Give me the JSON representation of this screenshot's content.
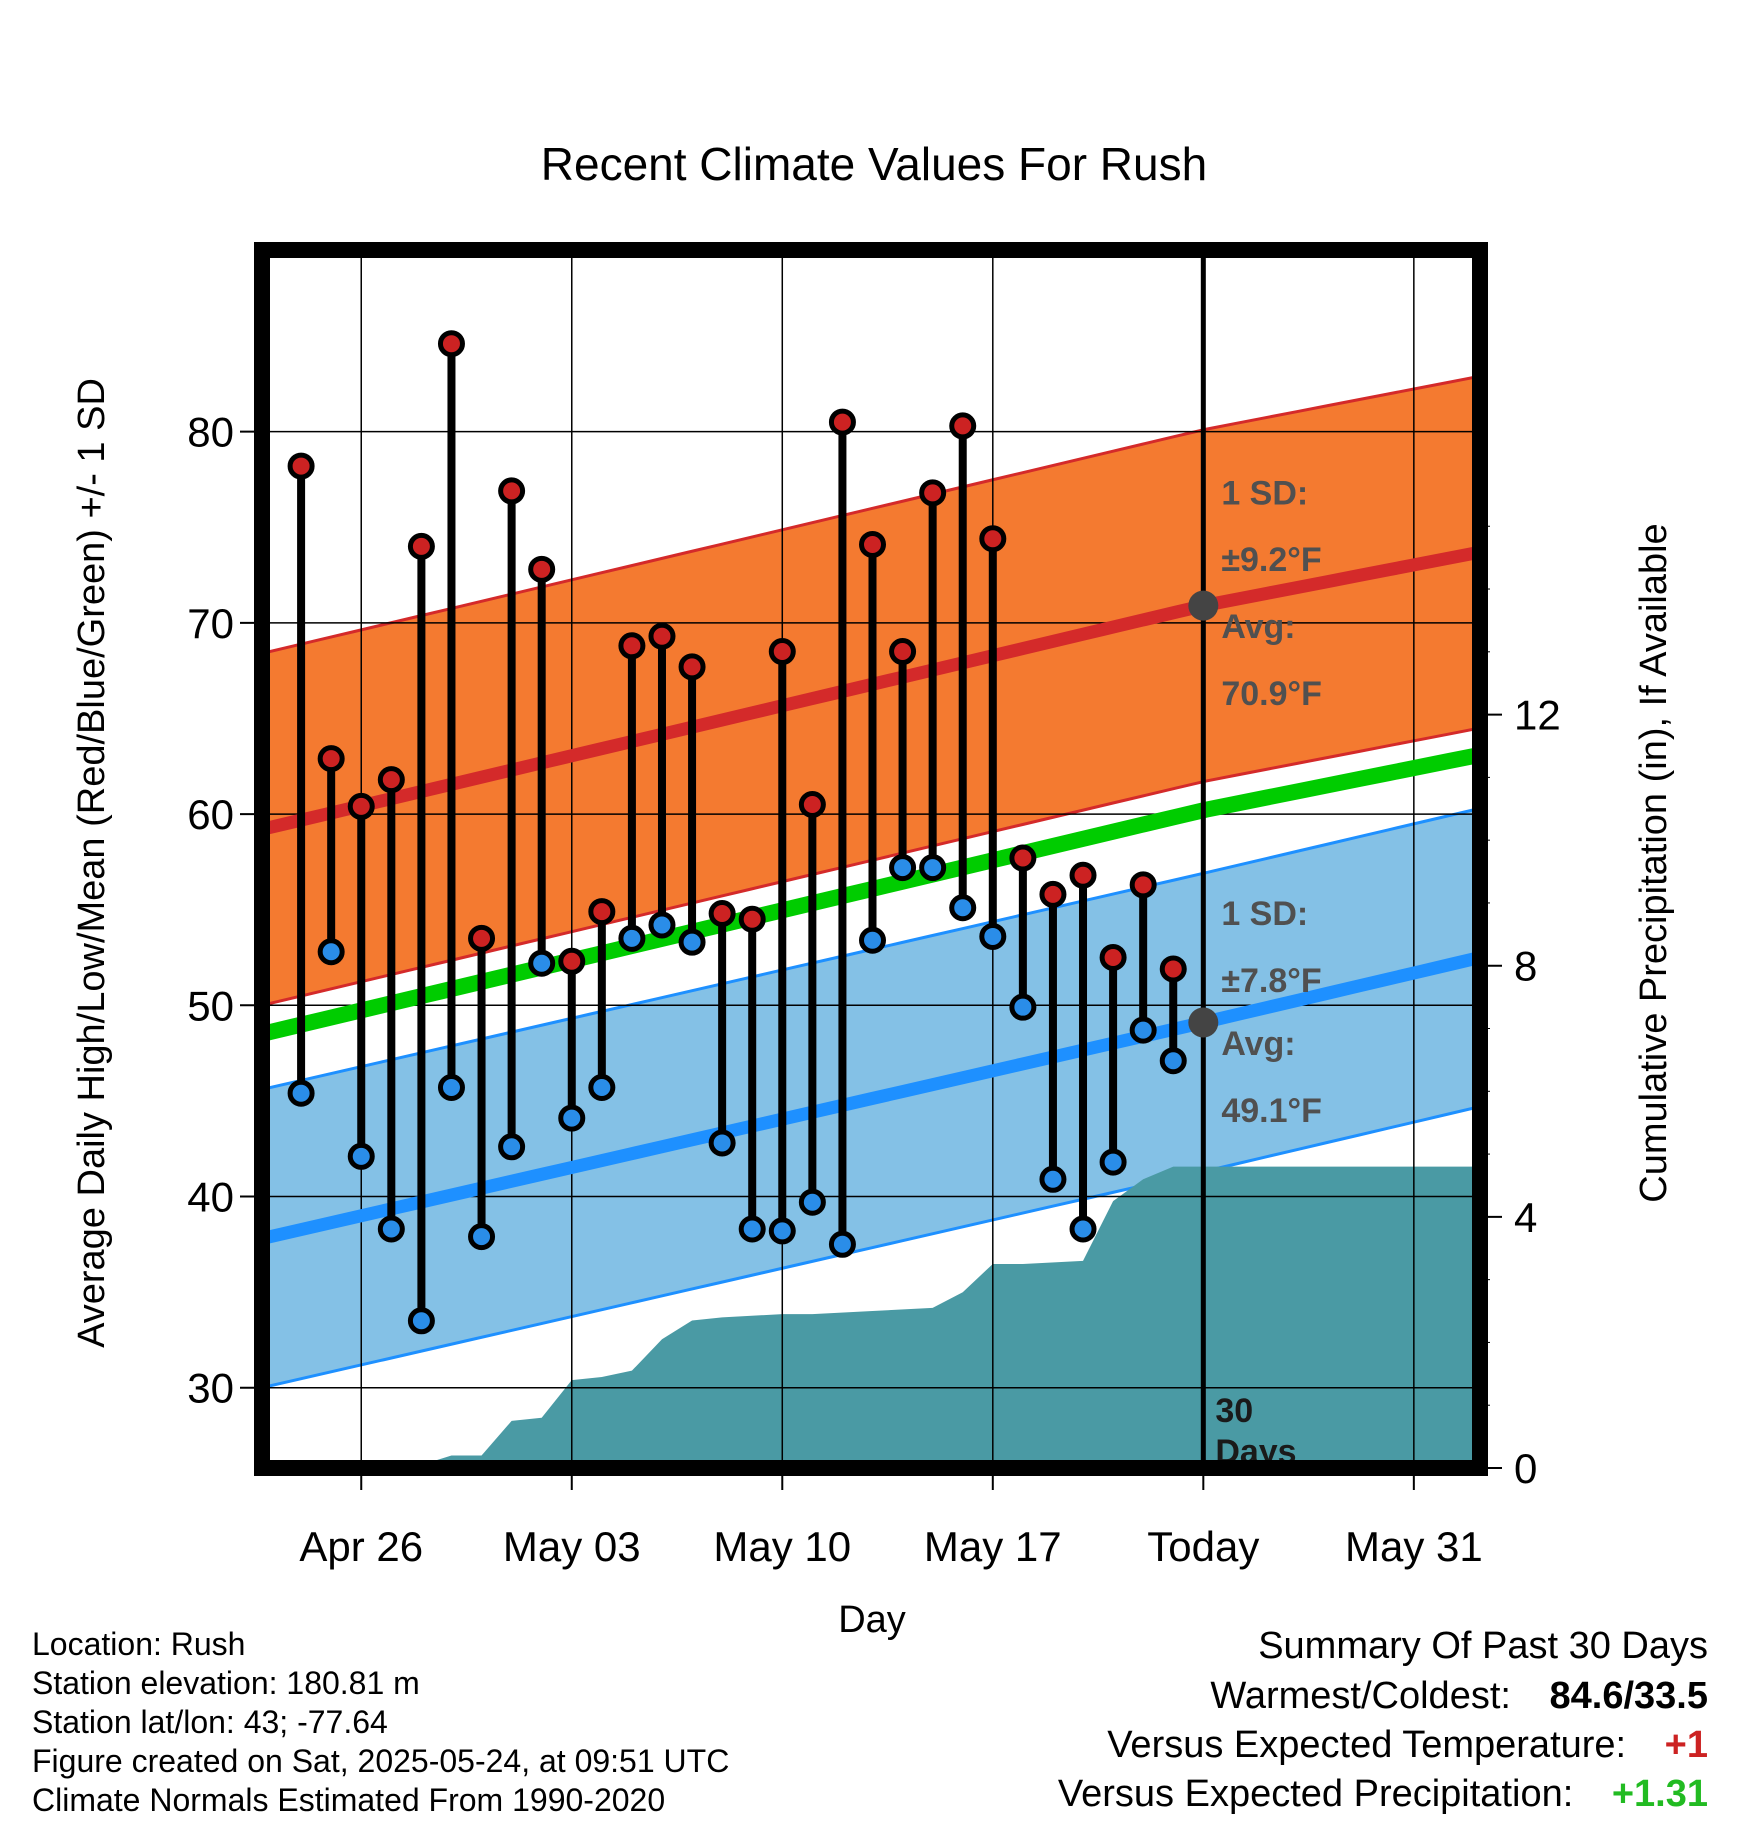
{
  "title": "Recent Climate Values For Rush",
  "y_left_label": "Average Daily High/Low/Mean (Red/Blue/Green) +/- 1 SD",
  "y_right_label": "Cumulative Precipitation (in), If Available",
  "x_label": "Day",
  "annotations": {
    "high_sd_line1": "1 SD:",
    "high_sd_line2": "±9.2°F",
    "high_avg_line1": "Avg:",
    "high_avg_line2": "70.9°F",
    "low_sd_line1": "1 SD:",
    "low_sd_line2": "±7.8°F",
    "low_avg_line1": "Avg:",
    "low_avg_line2": "49.1°F",
    "days_line1": "30",
    "days_line2": "Days"
  },
  "info": {
    "location": "Location: Rush",
    "elevation": "Station elevation: 180.81 m",
    "latlon": "Station lat/lon: 43; -77.64",
    "created": "Figure created on Sat, 2025-05-24, at 09:51 UTC",
    "normals": "Climate Normals Estimated From 1990-2020"
  },
  "summary": {
    "title": "Summary Of Past 30 Days",
    "warm_cold_label": "Warmest/Coldest:",
    "warm_cold_value": "84.6/33.5",
    "temp_label": "Versus Expected Temperature:",
    "temp_value": "+1",
    "precip_label": "Versus Expected Precipitation:",
    "precip_value": "+1.31"
  },
  "colors": {
    "high_band": "#f47a30",
    "high_line": "#d42a2a",
    "low_band": "#84c1e6",
    "low_line": "#1e90ff",
    "mean_line": "#00cc00",
    "precip": "#4a9aa4",
    "high_dot": "#cc2222",
    "low_dot": "#2a8de8",
    "temp_pos": "#cc2222",
    "precip_pos": "#22bb22"
  },
  "chart_data": {
    "type": "line",
    "x_ticks": [
      {
        "day": 3,
        "label": "Apr 26"
      },
      {
        "day": 10,
        "label": "May 03"
      },
      {
        "day": 17,
        "label": "May 10"
      },
      {
        "day": 24,
        "label": "May 17"
      },
      {
        "day": 31,
        "label": "Today"
      },
      {
        "day": 38,
        "label": "May 31"
      }
    ],
    "y_left_range": [
      25.8,
      89.5
    ],
    "y_left_ticks": [
      30,
      40,
      50,
      60,
      70,
      80
    ],
    "y_right_range": [
      0,
      19.4
    ],
    "y_right_ticks": [
      0,
      4,
      8,
      12
    ],
    "x_range": [
      -0.3,
      40.2
    ],
    "today_day": 31,
    "normal_high": {
      "start": 59.2,
      "today": 70.9,
      "end": 73.7,
      "sd": 9.2
    },
    "normal_low": {
      "start": 37.8,
      "today": 49.1,
      "end": 52.5,
      "sd": 7.8
    },
    "normal_mean": {
      "start": 48.5,
      "today": 60.2,
      "end": 63.1
    },
    "daily": [
      {
        "day": 1,
        "high": 78.2,
        "low": 45.4
      },
      {
        "day": 2,
        "high": 62.9,
        "low": 52.8
      },
      {
        "day": 3,
        "high": 60.4,
        "low": 42.1
      },
      {
        "day": 4,
        "high": 61.8,
        "low": 38.3
      },
      {
        "day": 5,
        "high": 74.0,
        "low": 33.5
      },
      {
        "day": 6,
        "high": 84.6,
        "low": 45.7
      },
      {
        "day": 7,
        "high": 53.5,
        "low": 37.9
      },
      {
        "day": 8,
        "high": 76.9,
        "low": 42.6
      },
      {
        "day": 9,
        "high": 72.8,
        "low": 52.2
      },
      {
        "day": 10,
        "high": 52.3,
        "low": 44.1
      },
      {
        "day": 11,
        "high": 54.9,
        "low": 45.7
      },
      {
        "day": 12,
        "high": 68.8,
        "low": 53.5
      },
      {
        "day": 13,
        "high": 69.3,
        "low": 54.2
      },
      {
        "day": 14,
        "high": 67.7,
        "low": 53.3
      },
      {
        "day": 15,
        "high": 54.8,
        "low": 42.8
      },
      {
        "day": 16,
        "high": 54.5,
        "low": 38.3
      },
      {
        "day": 17,
        "high": 68.5,
        "low": 38.2
      },
      {
        "day": 18,
        "high": 60.5,
        "low": 39.7
      },
      {
        "day": 19,
        "high": 80.5,
        "low": 37.5
      },
      {
        "day": 20,
        "high": 74.1,
        "low": 53.4
      },
      {
        "day": 21,
        "high": 68.5,
        "low": 57.2
      },
      {
        "day": 22,
        "high": 76.8,
        "low": 57.2
      },
      {
        "day": 23,
        "high": 80.3,
        "low": 55.1
      },
      {
        "day": 24,
        "high": 74.4,
        "low": 53.6
      },
      {
        "day": 25,
        "high": 57.7,
        "low": 49.9
      },
      {
        "day": 26,
        "high": 55.8,
        "low": 40.9
      },
      {
        "day": 27,
        "high": 56.8,
        "low": 38.3
      },
      {
        "day": 28,
        "high": 52.5,
        "low": 41.8
      },
      {
        "day": 29,
        "high": 56.3,
        "low": 48.7
      },
      {
        "day": 30,
        "high": 51.9,
        "low": 47.1
      }
    ],
    "precip_cumulative": [
      [
        0,
        0
      ],
      [
        2.5,
        0
      ],
      [
        3,
        0.05
      ],
      [
        5,
        0.05
      ],
      [
        6,
        0.2
      ],
      [
        7,
        0.2
      ],
      [
        8,
        0.75
      ],
      [
        9,
        0.8
      ],
      [
        10,
        1.4
      ],
      [
        11,
        1.45
      ],
      [
        12,
        1.55
      ],
      [
        13,
        2.05
      ],
      [
        14,
        2.35
      ],
      [
        15,
        2.4
      ],
      [
        17,
        2.45
      ],
      [
        18,
        2.45
      ],
      [
        20,
        2.5
      ],
      [
        22,
        2.55
      ],
      [
        23,
        2.8
      ],
      [
        24,
        3.25
      ],
      [
        25,
        3.25
      ],
      [
        27,
        3.3
      ],
      [
        28,
        4.25
      ],
      [
        29,
        4.6
      ],
      [
        30,
        4.8
      ],
      [
        31,
        4.8
      ],
      [
        40,
        4.8
      ]
    ]
  }
}
